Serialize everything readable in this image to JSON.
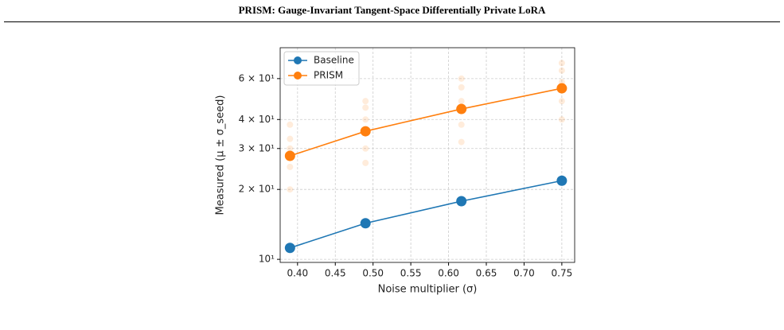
{
  "header": {
    "title": "PRISM: Gauge-Invariant Tangent-Space Differentially Private LoRA"
  },
  "chart_data": {
    "type": "line",
    "xlabel": "Noise multiplier (σ)",
    "ylabel": "Measured (μ ± σ_seed)",
    "x": [
      0.39,
      0.49,
      0.617,
      0.75
    ],
    "series": [
      {
        "name": "Baseline",
        "color": "#1f77b4",
        "values": [
          11.2,
          14.3,
          17.8,
          21.8
        ]
      },
      {
        "name": "PRISM",
        "color": "#ff7f0e",
        "values": [
          27.9,
          35.6,
          44.4,
          54.5
        ],
        "seed_values": [
          [
            20,
            25,
            30,
            33,
            38
          ],
          [
            26,
            30,
            40,
            45,
            48
          ],
          [
            32,
            38,
            48,
            55,
            60
          ],
          [
            40,
            48,
            58,
            65,
            70
          ]
        ]
      }
    ],
    "xlim": [
      0.377,
      0.767
    ],
    "ylim": [
      9.7,
      81.5
    ],
    "log_y": true,
    "xticks": [
      {
        "value": 0.4,
        "label": "0.40"
      },
      0.45,
      {
        "value": 0.5,
        "label": "0.50"
      },
      0.55,
      {
        "value": 0.6,
        "label": "0.60"
      },
      0.65,
      {
        "value": 0.7,
        "label": "0.70"
      },
      0.75
    ],
    "yticks": [
      {
        "value": 10,
        "label": "10¹"
      },
      {
        "value": 20,
        "label": "2 × 10¹"
      },
      {
        "value": 30,
        "label": "3 × 10¹"
      },
      {
        "value": 40,
        "label": "4 × 10¹"
      },
      {
        "value": 60,
        "label": "6 × 10¹"
      }
    ],
    "grid": true,
    "legend": "upper left"
  }
}
